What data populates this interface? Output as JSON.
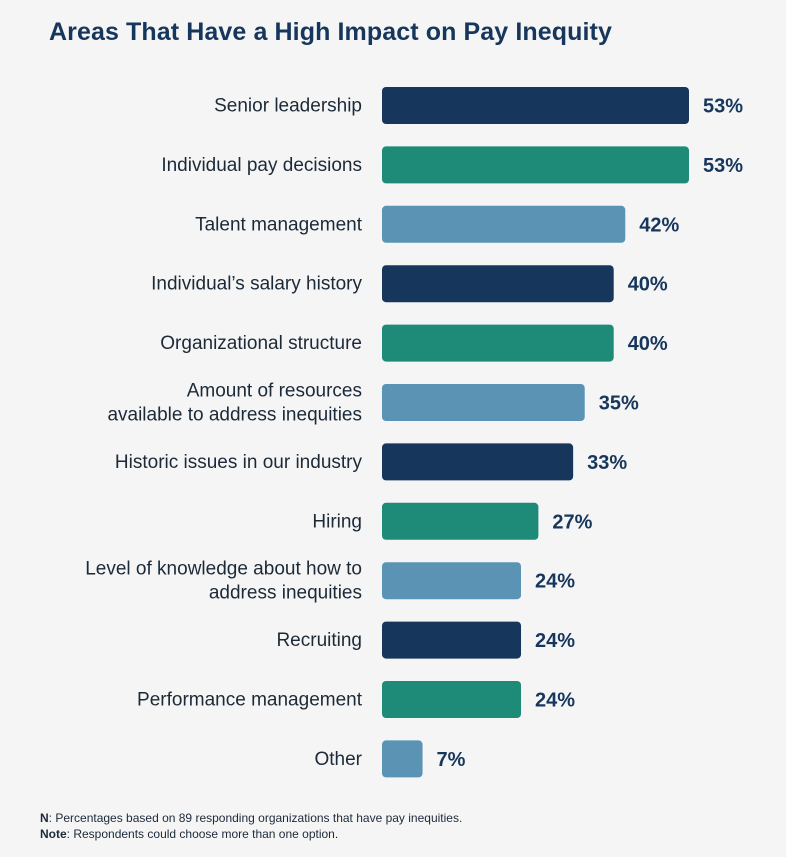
{
  "chart_data": {
    "type": "bar",
    "orientation": "horizontal",
    "title": "Areas That Have a High Impact on Pay Inequity",
    "categories": [
      [
        "Senior leadership"
      ],
      [
        "Individual pay decisions"
      ],
      [
        "Talent management"
      ],
      [
        "Individual’s salary history"
      ],
      [
        "Organizational structure"
      ],
      [
        "Amount of resources",
        "available to address inequities"
      ],
      [
        "Historic issues in our industry"
      ],
      [
        "Hiring"
      ],
      [
        "Level of knowledge about how to",
        "address inequities"
      ],
      [
        "Recruiting"
      ],
      [
        "Performance management"
      ],
      [
        "Other"
      ]
    ],
    "values": [
      53,
      53,
      42,
      40,
      40,
      35,
      33,
      27,
      24,
      24,
      24,
      7
    ],
    "value_labels": [
      "53%",
      "53%",
      "42%",
      "40%",
      "40%",
      "35%",
      "33%",
      "27%",
      "24%",
      "24%",
      "24%",
      "7%"
    ],
    "xlim": [
      0,
      100
    ],
    "colors": [
      "#17365c",
      "#1e8a78",
      "#5b93b5"
    ],
    "xlabel": "",
    "ylabel": "",
    "grid": false,
    "legend": "none"
  },
  "notes": {
    "n_label": "N",
    "n_text": ": Percentages based on 89 responding organizations that have pay inequities.",
    "note_label": "Note",
    "note_text": ": Respondents could choose more than one option."
  }
}
